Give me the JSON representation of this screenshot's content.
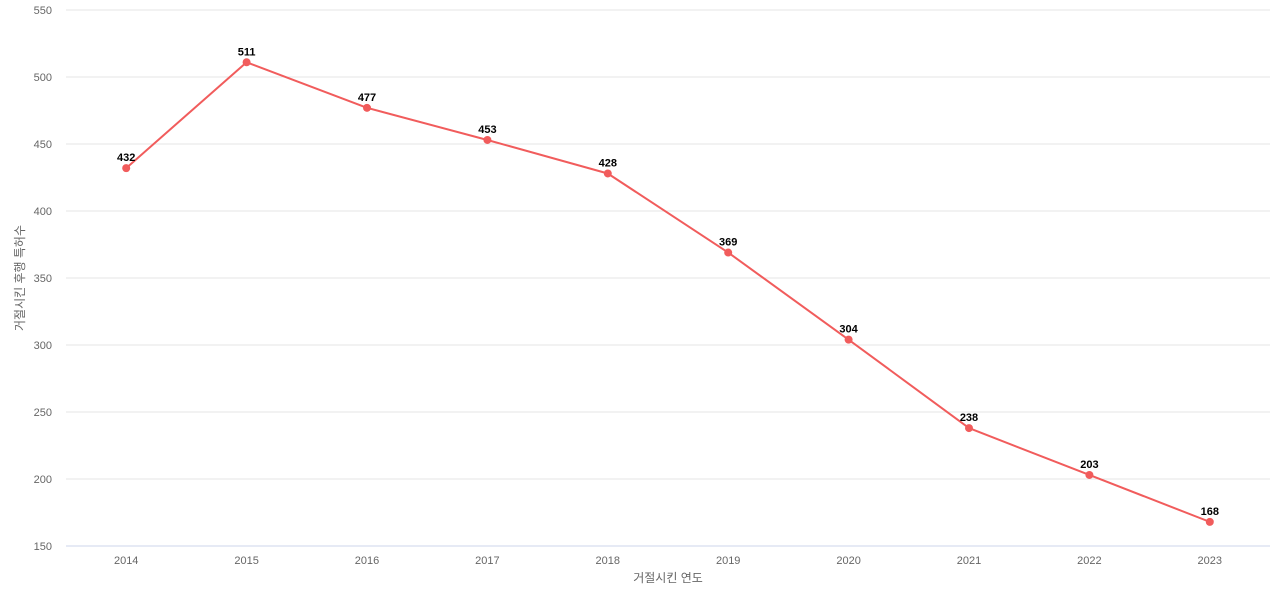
{
  "chart_data": {
    "type": "line",
    "x": [
      "2014",
      "2015",
      "2016",
      "2017",
      "2018",
      "2019",
      "2020",
      "2021",
      "2022",
      "2023"
    ],
    "series": [
      {
        "values": [
          432,
          511,
          477,
          453,
          428,
          369,
          304,
          238,
          203,
          168
        ],
        "color": "#f15c5c"
      }
    ],
    "xlabel": "거절시킨 연도",
    "ylabel": "거절시킨 후행 특허수",
    "ylim": [
      150,
      550
    ],
    "yticks": [
      150,
      200,
      250,
      300,
      350,
      400,
      450,
      500,
      550
    ],
    "grid": true,
    "data_labels": true,
    "legend": "none"
  }
}
